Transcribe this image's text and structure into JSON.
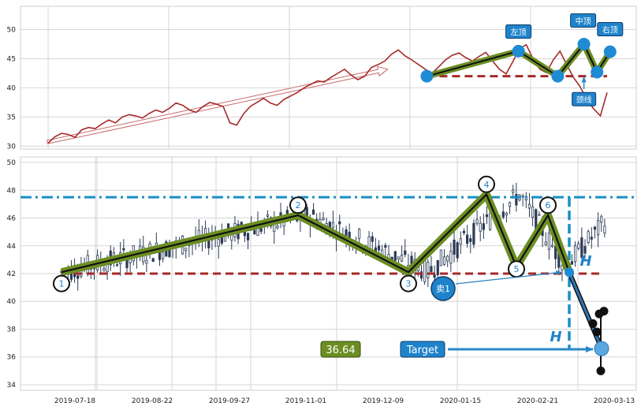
{
  "chart_data": [
    {
      "type": "line",
      "panel": "top",
      "ylim": [
        29.5,
        54
      ],
      "yticks": [
        "30",
        "35",
        "40",
        "45",
        "50"
      ],
      "grid": true,
      "price_close": [
        30.5,
        31.6,
        32.2,
        32.0,
        31.5,
        32.8,
        33.2,
        33.0,
        33.8,
        34.5,
        34.0,
        35.0,
        35.4,
        35.2,
        34.8,
        35.6,
        36.2,
        35.8,
        36.5,
        37.4,
        37.0,
        36.2,
        35.8,
        36.8,
        37.5,
        37.2,
        36.8,
        34.0,
        33.6,
        35.5,
        36.8,
        37.5,
        38.2,
        37.4,
        37.0,
        38.0,
        38.6,
        39.2,
        40.0,
        40.6,
        41.2,
        41.0,
        41.8,
        42.5,
        43.2,
        42.2,
        41.4,
        42.0,
        43.5,
        44.0,
        44.6,
        45.8,
        46.5,
        45.5,
        44.8,
        44.0,
        43.2,
        42.5,
        43.6,
        44.8,
        45.6,
        46.0,
        45.2,
        44.6,
        45.4,
        46.1,
        44.6,
        43.2,
        42.4,
        44.5,
        46.8,
        47.4,
        45.0,
        43.2,
        42.6,
        44.8,
        46.3,
        44.0,
        41.8,
        40.2,
        38.0,
        36.4,
        35.2,
        39.2
      ],
      "trend_arrow": {
        "from": [
          0,
          30.7
        ],
        "to": [
          52,
          43.2
        ]
      },
      "neckline": 42,
      "pattern": {
        "x": [
          58,
          72,
          78,
          82,
          84,
          86
        ],
        "y": [
          42.0,
          46.3,
          42.0,
          47.5,
          42.7,
          46.2
        ]
      },
      "annotations": [
        "左顶",
        "中顶",
        "右顶",
        "颈线"
      ]
    },
    {
      "type": "candlestick",
      "panel": "bottom",
      "ylim": [
        33.6,
        50.4
      ],
      "yticks": [
        "34",
        "36",
        "38",
        "40",
        "42",
        "44",
        "46",
        "48",
        "50"
      ],
      "xticks": [
        "2019-07-18",
        "2019-08-22",
        "2019-09-27",
        "2019-11-01",
        "2019-12-09",
        "2020-01-15",
        "2020-02-21",
        "2020-03-13"
      ],
      "grid": true,
      "resistance": 47.5,
      "neckline": 42,
      "zigzag": {
        "x": [
          0,
          38,
          56,
          70,
          77,
          84,
          88,
          92
        ],
        "y": [
          42.1,
          46.2,
          42.1,
          47.7,
          42.5,
          46.2,
          42.1,
          36.6
        ]
      },
      "pivot_labels": [
        "1",
        "2",
        "3",
        "4",
        "5",
        "6"
      ],
      "sell_label": "卖1",
      "target_label": "Target",
      "target_value": "36.64",
      "height_label": "H"
    }
  ],
  "colors": {
    "price": "#a52a2a",
    "pattern": "#6b8e23",
    "neckline": "#a52a2a",
    "resistance": "#1a8fc4",
    "marker": "#1f8bd3",
    "candle": "#2b3a55"
  }
}
